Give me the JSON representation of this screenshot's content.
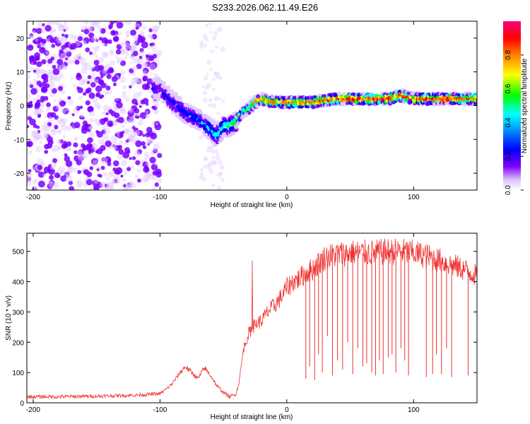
{
  "chart_data": [
    {
      "type": "heatmap",
      "title": "S233.2026.062.11.49.E26",
      "xlabel": "Height of straight line (km)",
      "ylabel": "Frequency (Hz)",
      "xlim": [
        -205,
        150
      ],
      "ylim": [
        -25,
        25
      ],
      "xticks": [
        -200,
        -100,
        0,
        100
      ],
      "yticks": [
        -20,
        -10,
        0,
        10,
        20
      ],
      "colorbar": {
        "label": "Normalized spectral amplitude",
        "range": [
          0,
          1
        ],
        "ticks": [
          "0.0",
          "0.2",
          "0.4",
          "0.6",
          "0.8"
        ],
        "colors": [
          "#ffffff",
          "#e0c8ff",
          "#7a00ff",
          "#0000ff",
          "#00ffff",
          "#00ff00",
          "#ffff00",
          "#ff8000",
          "#ff0000",
          "#ff0080"
        ]
      },
      "ridge": {
        "description": "frequency ridge vs height",
        "x": [
          -100,
          -90,
          -80,
          -70,
          -60,
          -55,
          -50,
          -45,
          -40,
          -35,
          -30,
          -25,
          -20,
          -10,
          0,
          20,
          40,
          60,
          80,
          90,
          100,
          120,
          150
        ],
        "y": [
          5,
          1,
          -2,
          -4,
          -7,
          -9,
          -6,
          -6,
          -5,
          -2,
          -1,
          1,
          2,
          1,
          1,
          1,
          2,
          2,
          2,
          3,
          2,
          2,
          2
        ],
        "peak_amplitude": [
          0.3,
          0.35,
          0.4,
          0.4,
          0.45,
          0.5,
          0.5,
          0.55,
          0.6,
          0.65,
          0.7,
          0.75,
          0.8,
          0.85,
          0.85,
          0.9,
          0.95,
          0.95,
          0.95,
          0.95,
          0.95,
          0.95,
          0.9
        ]
      }
    },
    {
      "type": "line",
      "xlabel": "Height of straight line (km)",
      "ylabel": "SNR (10 * v/v)",
      "xlim": [
        -205,
        150
      ],
      "ylim": [
        0,
        560
      ],
      "xticks": [
        -200,
        -100,
        0,
        100
      ],
      "yticks": [
        0,
        100,
        200,
        300,
        400,
        500
      ],
      "color": "#f03030",
      "series": [
        {
          "name": "SNR",
          "x": [
            -205,
            -180,
            -150,
            -120,
            -100,
            -95,
            -90,
            -85,
            -80,
            -75,
            -70,
            -65,
            -60,
            -55,
            -50,
            -45,
            -40,
            -38,
            -36,
            -34,
            -30,
            -25,
            -20,
            -15,
            -10,
            -5,
            0,
            5,
            10,
            15,
            20,
            25,
            30,
            35,
            40,
            50,
            60,
            70,
            80,
            90,
            100,
            110,
            120,
            130,
            140,
            150
          ],
          "y": [
            20,
            20,
            22,
            25,
            30,
            45,
            65,
            95,
            120,
            100,
            80,
            115,
            90,
            55,
            35,
            20,
            30,
            60,
            120,
            180,
            230,
            260,
            270,
            300,
            320,
            345,
            380,
            400,
            410,
            430,
            440,
            460,
            480,
            485,
            490,
            495,
            495,
            495,
            500,
            500,
            495,
            485,
            470,
            455,
            440,
            420
          ]
        }
      ],
      "dropouts": {
        "x": [
          15,
          18,
          22,
          25,
          28,
          32,
          36,
          40,
          44,
          48,
          52,
          56,
          60,
          63,
          67,
          70,
          73,
          76,
          80,
          83,
          86,
          90,
          93,
          96,
          110,
          115,
          118,
          122,
          126,
          130,
          143
        ],
        "y": [
          80,
          120,
          75,
          160,
          100,
          220,
          90,
          140,
          110,
          200,
          95,
          180,
          120,
          130,
          100,
          90,
          140,
          95,
          150,
          160,
          100,
          180,
          140,
          90,
          85,
          95,
          160,
          95,
          180,
          85,
          90
        ]
      }
    }
  ]
}
